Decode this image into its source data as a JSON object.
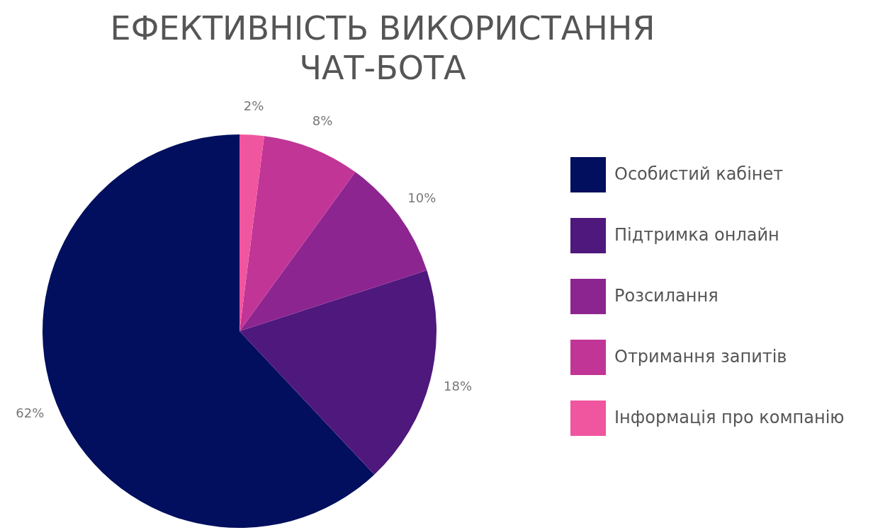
{
  "chart_data": {
    "type": "pie",
    "title": "ЕФЕКТИВНІСТЬ ВИКОРИСТАННЯ ЧАТ-БОТА",
    "categories": [
      "Особистий кабінет",
      "Підтримка онлайн",
      "Розсилання",
      "Отримання запитів",
      "Інформація про компанію"
    ],
    "values": [
      62,
      18,
      10,
      8,
      2
    ],
    "colors": [
      "#010f5e",
      "#4f187c",
      "#8d2590",
      "#c13596",
      "#f0559f"
    ],
    "value_labels": [
      "62%",
      "18%",
      "10%",
      "8%",
      "2%"
    ],
    "legend": "right"
  }
}
